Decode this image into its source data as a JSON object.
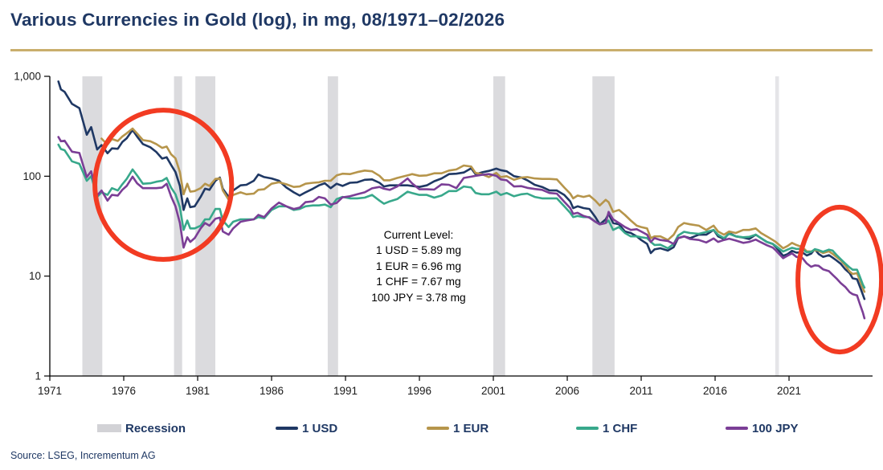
{
  "source": "Source: LSEG, Incrementum AG",
  "annotation_box": {
    "title": "Current Level:",
    "usd": "1 USD = 5.89 mg",
    "eur": "1 EUR = 6.96 mg",
    "chf": "1 CHF = 7.67 mg",
    "jpy": "100 JPY = 3.78 mg"
  },
  "chart_data": {
    "type": "line",
    "title": "Various Currencies in Gold (log), in mg, 08/1971–02/2026",
    "xlabel": "",
    "ylabel": "",
    "y_scale": "log",
    "ylim": [
      1,
      1000
    ],
    "x_range": [
      1971,
      2026.65
    ],
    "grid": false,
    "legend_position": "bottom",
    "yticks": [
      {
        "v": 1000,
        "label": "1,000"
      },
      {
        "v": 100,
        "label": "100"
      },
      {
        "v": 10,
        "label": "10"
      },
      {
        "v": 1,
        "label": "1"
      }
    ],
    "xticks": [
      1971,
      1976,
      1981,
      1986,
      1991,
      1996,
      2001,
      2006,
      2011,
      2016,
      2021
    ],
    "colors": {
      "recession": "#dbdbde",
      "recession_light": "#e5e5e8",
      "axis": "#000000",
      "annotation_red": "#f23b22",
      "accent_navy": "#1f3864",
      "accent_gold": "#c9ae6c"
    },
    "recessions": [
      {
        "from": 1973.2,
        "to": 1974.55
      },
      {
        "from": 1979.4,
        "to": 1979.95
      },
      {
        "from": 1980.85,
        "to": 1982.2
      },
      {
        "from": 1989.8,
        "to": 1990.5
      },
      {
        "from": 2001.0,
        "to": 2001.8
      },
      {
        "from": 2007.7,
        "to": 2009.2
      },
      {
        "from": 2020.07,
        "to": 2020.32,
        "light": true
      }
    ],
    "current_levels_mg": {
      "usd": 5.89,
      "eur": 6.96,
      "chf": 7.67,
      "jpy_100": 3.78
    },
    "legend": [
      {
        "label": "Recession",
        "type": "box",
        "color": "#d2d2d6"
      },
      {
        "label": "1 USD",
        "type": "line",
        "color": "#1f3864"
      },
      {
        "label": "1 EUR",
        "type": "line",
        "color": "#b6954b"
      },
      {
        "label": "1 CHF",
        "type": "line",
        "color": "#38a88b"
      },
      {
        "label": "100 JPY",
        "type": "line",
        "color": "#7b3e96"
      }
    ],
    "annotations": {
      "color": "#f23b22",
      "ellipses": [
        {
          "year_range": [
            1974.05,
            1983.3
          ],
          "value_range": [
            14.7,
            459
          ]
        },
        {
          "year_range": [
            2021.6,
            2027.25
          ],
          "value_range": [
            1.74,
            48.9
          ]
        }
      ]
    },
    "x": [
      1971.58,
      1971.75,
      1972.0,
      1972.5,
      1973.0,
      1973.5,
      1973.8,
      1974.2,
      1974.5,
      1974.9,
      1975.2,
      1975.6,
      1975.9,
      1976.2,
      1976.6,
      1976.9,
      1977.3,
      1977.8,
      1978.2,
      1978.6,
      1978.9,
      1979.2,
      1979.5,
      1979.8,
      1980.05,
      1980.3,
      1980.5,
      1980.8,
      1981.2,
      1981.5,
      1981.8,
      1982.2,
      1982.5,
      1982.7,
      1983.1,
      1983.4,
      1983.9,
      1984.3,
      1984.8,
      1985.1,
      1985.5,
      1986.0,
      1986.5,
      1987.0,
      1987.5,
      1987.9,
      1988.3,
      1988.8,
      1989.2,
      1989.6,
      1990.0,
      1990.4,
      1990.8,
      1991.3,
      1991.8,
      1992.3,
      1992.8,
      1993.3,
      1993.6,
      1994.0,
      1994.5,
      1995.2,
      1995.5,
      1996.0,
      1996.5,
      1997.0,
      1997.5,
      1998.0,
      1998.5,
      1999.0,
      1999.5,
      1999.8,
      2000.2,
      2000.7,
      2001.2,
      2001.5,
      2001.9,
      2002.4,
      2002.9,
      2003.3,
      2003.8,
      2004.3,
      2004.8,
      2005.3,
      2005.8,
      2006.2,
      2006.4,
      2006.7,
      2007.1,
      2007.5,
      2007.9,
      2008.2,
      2008.6,
      2008.8,
      2009.1,
      2009.5,
      2009.9,
      2010.3,
      2010.7,
      2011.0,
      2011.4,
      2011.65,
      2011.9,
      2012.3,
      2012.8,
      2013.2,
      2013.5,
      2013.9,
      2014.3,
      2014.9,
      2015.4,
      2015.9,
      2016.2,
      2016.6,
      2016.95,
      2017.4,
      2017.9,
      2018.3,
      2018.75,
      2019.1,
      2019.5,
      2019.9,
      2020.1,
      2020.6,
      2020.9,
      2021.2,
      2021.5,
      2021.9,
      2022.2,
      2022.5,
      2022.75,
      2023.0,
      2023.3,
      2023.7,
      2023.95,
      2024.2,
      2024.5,
      2024.8,
      2025.1,
      2025.3,
      2025.6,
      2025.8,
      2026.0,
      2026.1
    ],
    "series": [
      {
        "name": "1 USD",
        "color": "#1f3864",
        "values": [
          889,
          740,
          700,
          530,
          480,
          260,
          310,
          185,
          205,
          170,
          190,
          188,
          220,
          240,
          290,
          250,
          210,
          195,
          175,
          150,
          155,
          130,
          110,
          80,
          46,
          60,
          49,
          50,
          62,
          75,
          73,
          90,
          97,
          75,
          62,
          72,
          81,
          82,
          90,
          104,
          98,
          95,
          90,
          77,
          69,
          64,
          69,
          75,
          81,
          85,
          76,
          84,
          80,
          86,
          87,
          92,
          93,
          86,
          79,
          81,
          81,
          81,
          80,
          78,
          81,
          89,
          95,
          105,
          106,
          109,
          120,
          105,
          109,
          113,
          119,
          115,
          112,
          100,
          97,
          91,
          82,
          78,
          72,
          72,
          65,
          56,
          48,
          50,
          48,
          47,
          39,
          33,
          37,
          42,
          34,
          33,
          28,
          27,
          25,
          23,
          21,
          17,
          18.5,
          19,
          18,
          19.5,
          24,
          25,
          24,
          26,
          26,
          29,
          25,
          23.5,
          27,
          25,
          24.3,
          23.5,
          26,
          24,
          22,
          21,
          19.6,
          16,
          16.6,
          17.9,
          17.2,
          17.3,
          16.1,
          16.8,
          18.6,
          16.7,
          15.6,
          16.2,
          15.3,
          14.4,
          13.3,
          11.7,
          10.7,
          9.5,
          9.3,
          7.8,
          6.5,
          5.89
        ]
      },
      {
        "name": "1 EUR",
        "color": "#b6954b",
        "values": [
          null,
          null,
          null,
          null,
          null,
          null,
          null,
          null,
          238,
          207,
          236,
          225,
          250,
          269,
          300,
          268,
          230,
          224,
          210,
          192,
          198,
          166,
          151,
          110,
          66,
          84,
          70,
          71,
          76,
          84,
          80,
          94,
          95,
          72,
          58,
          65,
          69,
          66,
          67,
          73,
          74,
          84,
          87,
          83,
          78,
          79,
          84,
          86,
          87,
          90,
          90,
          102,
          106,
          105,
          110,
          114,
          112,
          101,
          91,
          91,
          96,
          102,
          105,
          101,
          102,
          107,
          107,
          114,
          117,
          128,
          125,
          108,
          105,
          98,
          108,
          98,
          100,
          92,
          97,
          98,
          95,
          94,
          94,
          93,
          77,
          67,
          60,
          64,
          62,
          64,
          57,
          51,
          58,
          55,
          44,
          46,
          41,
          36,
          32,
          31,
          30,
          24,
          25,
          25,
          23,
          26,
          31,
          34,
          33,
          32,
          29,
          32,
          28,
          26,
          28,
          27,
          29,
          29,
          30,
          27,
          25,
          23,
          22,
          19,
          20,
          21.5,
          20.5,
          19.5,
          17.7,
          17.6,
          18.2,
          17.9,
          17.0,
          17.7,
          16.7,
          15.6,
          14.4,
          12.8,
          11.1,
          10.5,
          10.7,
          9.0,
          7.5,
          6.96
        ]
      },
      {
        "name": "1 CHF",
        "color": "#38a88b",
        "values": [
          207,
          187,
          182,
          141,
          133,
          90,
          100,
          62,
          69,
          65,
          76,
          72,
          83,
          94,
          117,
          102,
          84,
          85,
          88,
          90,
          96,
          77,
          66,
          49,
          29,
          36,
          30,
          30,
          32,
          37,
          37,
          47,
          47,
          36,
          31,
          35,
          37,
          37,
          37,
          39,
          38,
          46,
          50,
          50,
          46,
          47,
          50,
          51,
          51,
          52,
          49,
          59,
          62,
          60,
          60,
          61,
          65,
          57,
          53,
          56,
          59,
          70,
          68,
          65,
          65,
          61,
          64,
          71,
          71,
          79,
          77,
          68,
          66,
          66,
          70,
          65,
          68,
          63,
          66,
          67,
          62,
          60,
          60,
          60,
          50,
          43,
          39,
          40,
          39,
          39,
          35,
          33,
          34,
          36,
          29,
          31,
          27,
          25,
          25,
          24.5,
          24,
          22,
          20.5,
          20.6,
          19,
          21,
          25.5,
          27.8,
          27,
          26.5,
          27.7,
          29,
          26,
          24,
          26.5,
          25,
          24.5,
          24.7,
          26,
          24,
          22,
          21,
          20,
          17.6,
          18.4,
          19.2,
          18.7,
          18.8,
          17.3,
          17.5,
          18.6,
          18.2,
          17.5,
          18.4,
          18.0,
          16.4,
          14.8,
          13.4,
          12.2,
          11.6,
          11.6,
          9.8,
          8.2,
          7.67
        ]
      },
      {
        "name": "100 JPY",
        "color": "#7b3e96",
        "values": [
          247,
          224,
          227,
          176,
          171,
          98,
          112,
          64,
          72,
          57,
          65,
          64,
          73,
          80,
          99,
          85,
          76,
          76,
          76,
          77,
          84,
          63,
          50,
          34,
          19.3,
          24.5,
          22,
          24,
          30,
          34,
          32,
          37.5,
          38.5,
          28,
          26,
          30,
          35,
          36,
          37,
          41,
          39,
          47.5,
          54.5,
          50,
          47,
          48.5,
          55,
          56,
          62,
          60,
          52,
          54,
          61.5,
          63,
          66,
          69,
          75.6,
          78,
          75,
          73,
          79,
          95,
          85,
          74,
          74,
          73.5,
          83,
          82,
          76,
          96,
          99,
          101,
          103,
          105,
          101,
          93,
          91,
          79,
          79.5,
          76.5,
          74.5,
          73,
          68,
          67,
          55.5,
          48,
          42,
          43,
          40,
          38.5,
          35,
          33,
          34,
          44,
          37,
          34,
          31,
          29,
          29.5,
          28,
          26,
          22,
          24,
          23,
          22.5,
          21,
          24,
          25,
          23.5,
          23,
          21.7,
          23.8,
          22,
          23,
          23.7,
          22.7,
          21.5,
          22,
          23.2,
          21.8,
          20.4,
          19.3,
          18.1,
          15.1,
          16,
          16.9,
          15.6,
          15.2,
          13.4,
          12.4,
          12.8,
          12.7,
          11.7,
          11.2,
          10.3,
          9.5,
          8.5,
          7.8,
          6.9,
          6.6,
          6.4,
          5.2,
          4.3,
          3.78
        ]
      }
    ]
  }
}
